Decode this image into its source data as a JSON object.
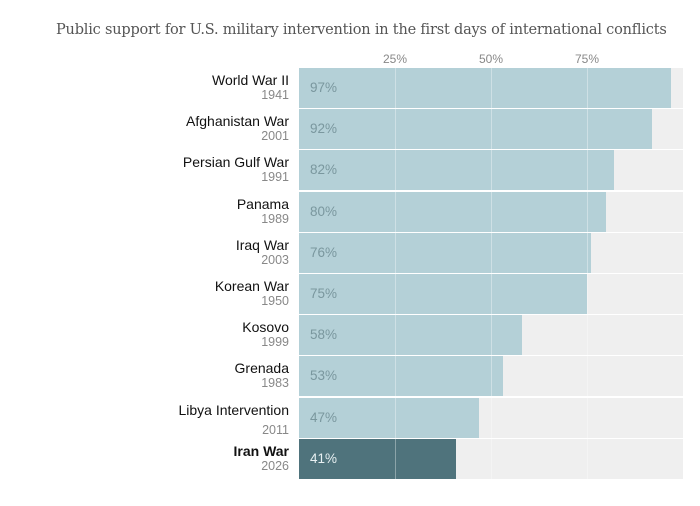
{
  "chart_data": {
    "type": "bar",
    "orientation": "horizontal",
    "title": "Public support for U.S. military intervention in the first days of international conflicts",
    "xlim": [
      0,
      100
    ],
    "ticks": [
      "25%",
      "50%",
      "75%"
    ],
    "tick_values": [
      25,
      50,
      75
    ],
    "categories": [
      {
        "name": "World War II",
        "year": "1941",
        "value": 97,
        "label": "97%",
        "highlight": false
      },
      {
        "name": "Afghanistan War",
        "year": "2001",
        "value": 92,
        "label": "92%",
        "highlight": false
      },
      {
        "name": "Persian Gulf War",
        "year": "1991",
        "value": 82,
        "label": "82%",
        "highlight": false
      },
      {
        "name": "Panama",
        "year": "1989",
        "value": 80,
        "label": "80%",
        "highlight": false
      },
      {
        "name": "Iraq War",
        "year": "2003",
        "value": 76,
        "label": "76%",
        "highlight": false
      },
      {
        "name": "Korean War",
        "year": "1950",
        "value": 75,
        "label": "75%",
        "highlight": false
      },
      {
        "name": "Kosovo",
        "year": "1999",
        "value": 58,
        "label": "58%",
        "highlight": false
      },
      {
        "name": "Grenada",
        "year": "1983",
        "value": 53,
        "label": "53%",
        "highlight": false
      },
      {
        "name": "Libya Intervention",
        "year": "2011",
        "value": 47,
        "label": "47%",
        "highlight": false
      },
      {
        "name": "Iran War",
        "year": "2026",
        "value": 41,
        "label": "41%",
        "highlight": true
      }
    ],
    "colors": {
      "bar": "#b4d0d7",
      "highlight": "#4f737c",
      "track": "#efefef"
    }
  }
}
